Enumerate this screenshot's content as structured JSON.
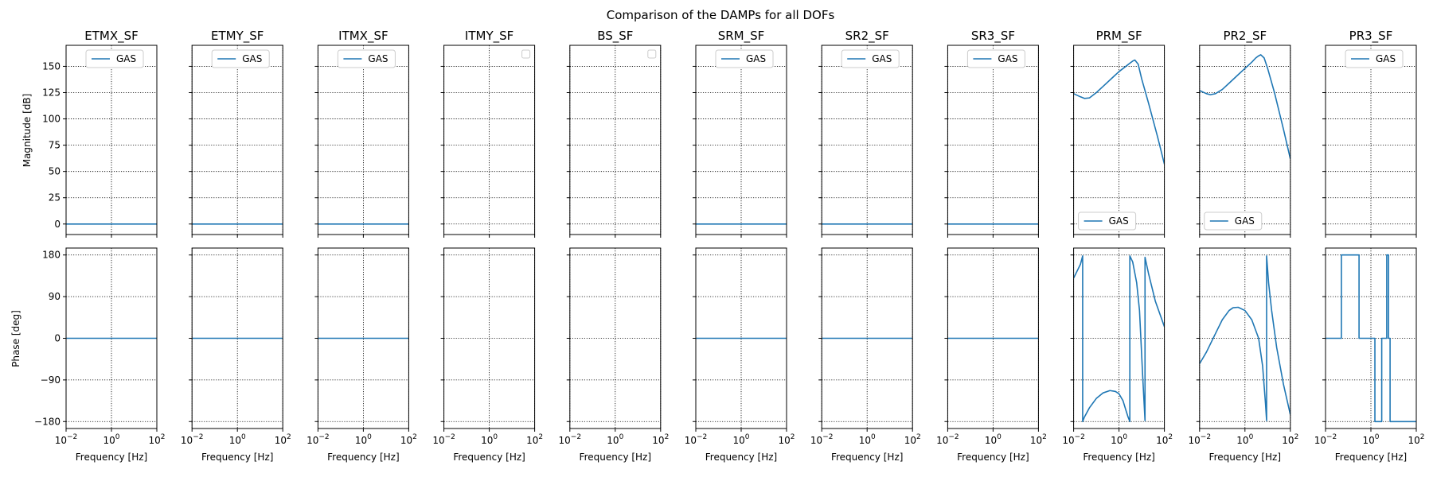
{
  "chart_data": {
    "type": "line",
    "title": "Comparison of the DAMPs for all DOFs",
    "rows": [
      {
        "ylabel": "Magnitude [dB]",
        "ylim": [
          -10,
          170
        ],
        "yticks": [
          "0",
          "25",
          "50",
          "75",
          "100",
          "125",
          "150"
        ],
        "ytick_values": [
          0,
          25,
          50,
          75,
          100,
          125,
          150
        ]
      },
      {
        "ylabel": "Phase [deg]",
        "ylim": [
          -195,
          195
        ],
        "yticks": [
          "−180",
          "−90",
          "0",
          "90",
          "180"
        ],
        "ytick_values": [
          -180,
          -90,
          0,
          90,
          180
        ]
      }
    ],
    "x_scale": "log",
    "xlim": [
      0.01,
      100
    ],
    "xlabel": "Frequency [Hz]",
    "xticks": [
      {
        "base": "10",
        "exp": "−2",
        "value": 0.01
      },
      {
        "base": "10",
        "exp": "0",
        "value": 1
      },
      {
        "base": "10",
        "exp": "2",
        "value": 100
      }
    ],
    "grid": true,
    "series_color": "#1f77b4",
    "panels": [
      {
        "title": "ETMX_SF",
        "legend": "GAS",
        "legend_loc": "upper center",
        "magnitude": {
          "x": [
            0.01,
            100
          ],
          "y": [
            0,
            0
          ]
        },
        "phase": {
          "x": [
            0.01,
            100
          ],
          "y": [
            0,
            0
          ]
        }
      },
      {
        "title": "ETMY_SF",
        "legend": "GAS",
        "legend_loc": "upper center",
        "magnitude": {
          "x": [
            0.01,
            100
          ],
          "y": [
            0,
            0
          ]
        },
        "phase": {
          "x": [
            0.01,
            100
          ],
          "y": [
            0,
            0
          ]
        }
      },
      {
        "title": "ITMX_SF",
        "legend": "GAS",
        "legend_loc": "upper center",
        "magnitude": {
          "x": [
            0.01,
            100
          ],
          "y": [
            0,
            0
          ]
        },
        "phase": {
          "x": [
            0.01,
            100
          ],
          "y": [
            0,
            0
          ]
        }
      },
      {
        "title": "ITMY_SF",
        "legend": "",
        "legend_loc": "upper right",
        "magnitude": null,
        "phase": null
      },
      {
        "title": "BS_SF",
        "legend": "",
        "legend_loc": "upper right",
        "magnitude": null,
        "phase": null
      },
      {
        "title": "SRM_SF",
        "legend": "GAS",
        "legend_loc": "upper center",
        "magnitude": {
          "x": [
            0.01,
            100
          ],
          "y": [
            0,
            0
          ]
        },
        "phase": {
          "x": [
            0.01,
            100
          ],
          "y": [
            0,
            0
          ]
        }
      },
      {
        "title": "SR2_SF",
        "legend": "GAS",
        "legend_loc": "upper center",
        "magnitude": {
          "x": [
            0.01,
            100
          ],
          "y": [
            0,
            0
          ]
        },
        "phase": {
          "x": [
            0.01,
            100
          ],
          "y": [
            0,
            0
          ]
        }
      },
      {
        "title": "SR3_SF",
        "legend": "GAS",
        "legend_loc": "upper center",
        "magnitude": {
          "x": [
            0.01,
            100
          ],
          "y": [
            0,
            0
          ]
        },
        "phase": {
          "x": [
            0.01,
            100
          ],
          "y": [
            0,
            0
          ]
        }
      },
      {
        "title": "PRM_SF",
        "legend": "GAS",
        "legend_loc": "lower left",
        "magnitude": {
          "x": [
            0.01,
            0.02,
            0.03,
            0.05,
            0.1,
            0.2,
            0.5,
            1,
            2,
            3,
            4,
            5,
            7,
            10,
            20,
            50,
            100
          ],
          "y": [
            124,
            121,
            119.5,
            120,
            125,
            131,
            139,
            145,
            150,
            153,
            155,
            156,
            152,
            138,
            115,
            83,
            57
          ]
        },
        "phase": {
          "x": [
            0.01,
            0.02,
            0.025,
            0.025,
            0.03,
            0.05,
            0.1,
            0.2,
            0.4,
            0.7,
            1,
            1.5,
            2,
            2.5,
            3,
            3,
            4,
            6,
            8,
            11,
            14,
            14,
            20,
            40,
            100
          ],
          "y": [
            130,
            160,
            178,
            -180,
            -170,
            -150,
            -130,
            -118,
            -113,
            -115,
            -120,
            -135,
            -155,
            -170,
            -180,
            178,
            165,
            120,
            60,
            -80,
            -178,
            175,
            140,
            80,
            25
          ]
        }
      },
      {
        "title": "PR2_SF",
        "legend": "GAS",
        "legend_loc": "lower left",
        "magnitude": {
          "x": [
            0.01,
            0.02,
            0.03,
            0.05,
            0.1,
            0.2,
            0.5,
            1,
            2,
            3,
            4,
            5,
            7,
            10,
            20,
            50,
            100
          ],
          "y": [
            127,
            124,
            123,
            124,
            128,
            134,
            142,
            148,
            154,
            158,
            160,
            161,
            158,
            148,
            125,
            90,
            62
          ]
        },
        "phase": {
          "x": [
            0.01,
            0.02,
            0.05,
            0.1,
            0.2,
            0.3,
            0.5,
            1,
            2,
            4,
            6,
            8,
            9,
            9,
            11,
            15,
            25,
            50,
            100
          ],
          "y": [
            -55,
            -30,
            10,
            40,
            60,
            66,
            67,
            60,
            40,
            0,
            -60,
            -140,
            -178,
            178,
            120,
            60,
            -20,
            -100,
            -165
          ]
        }
      },
      {
        "title": "PR3_SF",
        "legend": "GAS",
        "legend_loc": "upper center",
        "magnitude": null,
        "phase": {
          "x": [
            0.01,
            0.05,
            0.05,
            0.3,
            0.3,
            1.5,
            1.5,
            3,
            3,
            5,
            5,
            6,
            6,
            7,
            7,
            10,
            10,
            100
          ],
          "y": [
            0,
            0,
            180,
            180,
            0,
            0,
            -180,
            -180,
            0,
            0,
            180,
            180,
            0,
            0,
            -180,
            -180,
            -180,
            -180
          ]
        }
      }
    ]
  }
}
